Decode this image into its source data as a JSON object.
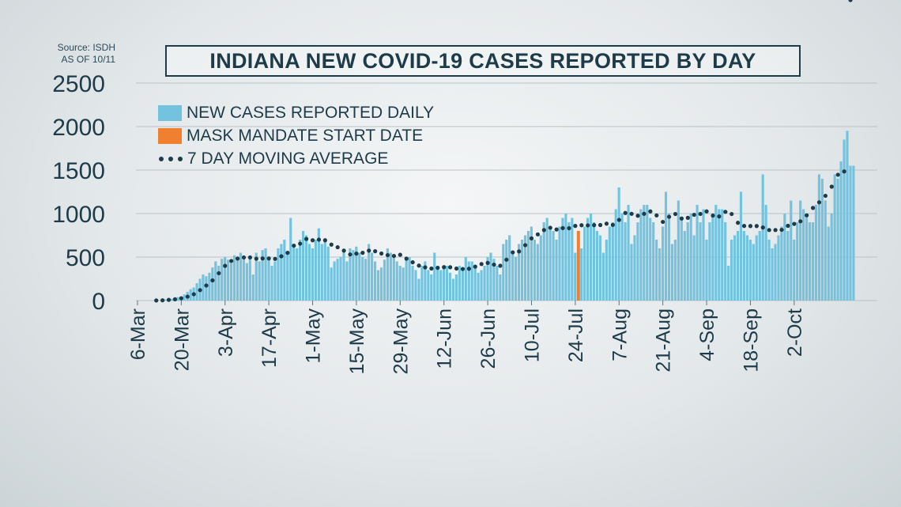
{
  "source": {
    "line1": "Source: ISDH",
    "line2": "AS OF 10/11"
  },
  "title": "INDIANA NEW COVID-19 CASES REPORTED BY DAY",
  "legend": {
    "cases": "NEW CASES REPORTED DAILY",
    "mask": "MASK MANDATE START DATE",
    "avg": "7 DAY MOVING AVERAGE"
  },
  "colors": {
    "bar": "#73c3df",
    "mask": "#f0802f",
    "avg": "#1d3b48",
    "text": "#1d3b48"
  },
  "chart_data": {
    "type": "bar",
    "start_date": "6-Mar",
    "ylim": [
      0,
      2500
    ],
    "yticks": [
      0,
      500,
      1000,
      1500,
      2000,
      2500
    ],
    "xticks": [
      "6-Mar",
      "20-Mar",
      "3-Apr",
      "17-Apr",
      "1-May",
      "15-May",
      "29-May",
      "12-Jun",
      "26-Jun",
      "10-Jul",
      "24-Jul",
      "7-Aug",
      "21-Aug",
      "4-Sep",
      "18-Sep",
      "2-Oct"
    ],
    "mask_mandate_day": 141,
    "mask_mandate_value": 800,
    "series": [
      {
        "name": "NEW CASES REPORTED DAILY",
        "values": [
          0,
          0,
          0,
          0,
          0,
          0,
          2,
          4,
          8,
          12,
          16,
          20,
          25,
          40,
          45,
          70,
          100,
          130,
          150,
          200,
          250,
          300,
          280,
          320,
          380,
          450,
          400,
          480,
          500,
          470,
          430,
          520,
          480,
          550,
          500,
          430,
          480,
          300,
          550,
          450,
          580,
          600,
          480,
          400,
          450,
          600,
          650,
          700,
          550,
          950,
          650,
          600,
          700,
          800,
          750,
          650,
          600,
          700,
          830,
          650,
          700,
          620,
          380,
          450,
          480,
          500,
          550,
          450,
          600,
          580,
          620,
          550,
          500,
          480,
          650,
          550,
          450,
          350,
          380,
          470,
          600,
          550,
          500,
          450,
          400,
          380,
          470,
          500,
          400,
          350,
          250,
          400,
          450,
          350,
          300,
          550,
          400,
          350,
          380,
          400,
          320,
          250,
          300,
          400,
          350,
          500,
          450,
          450,
          400,
          320,
          350,
          400,
          500,
          550,
          480,
          400,
          300,
          650,
          700,
          750,
          550,
          500,
          650,
          700,
          750,
          800,
          850,
          700,
          650,
          750,
          900,
          950,
          850,
          800,
          700,
          850,
          950,
          1000,
          900,
          950,
          550,
          800,
          600,
          850,
          950,
          1000,
          900,
          800,
          750,
          550,
          700,
          850,
          900,
          1050,
          1300,
          1000,
          900,
          1100,
          650,
          750,
          900,
          1050,
          1100,
          1100,
          950,
          900,
          700,
          600,
          850,
          1250,
          1000,
          650,
          700,
          1150,
          950,
          800,
          900,
          1000,
          750,
          1100,
          900,
          1050,
          700,
          900,
          1000,
          1100,
          1050,
          1050,
          900,
          400,
          700,
          750,
          800,
          1250,
          800,
          750,
          700,
          650,
          750,
          800,
          1450,
          1100,
          700,
          600,
          650,
          750,
          850,
          1000,
          800,
          1150,
          700,
          900,
          1150,
          1050,
          1000,
          900,
          900,
          1100,
          1450,
          1400,
          1150,
          850,
          1000,
          1450,
          1400,
          1600,
          1850,
          1950,
          1550,
          1550
        ]
      },
      {
        "name": "7 DAY MOVING AVERAGE",
        "values": [
          0,
          0,
          0,
          0,
          0,
          0,
          1,
          2,
          3,
          5,
          8,
          11,
          15,
          21,
          26,
          34,
          45,
          59,
          73,
          94,
          120,
          147,
          173,
          200,
          232,
          270,
          314,
          359,
          399,
          431,
          455,
          472,
          483,
          492,
          496,
          491,
          496,
          477,
          481,
          473,
          484,
          491,
          484,
          467,
          479,
          492,
          509,
          544,
          549,
          618,
          631,
          636,
          654,
          678,
          708,
          700,
          693,
          687,
          700,
          707,
          693,
          682,
          643,
          632,
          613,
          617,
          574,
          553,
          530,
          529,
          540,
          553,
          549,
          547,
          574,
          576,
          567,
          549,
          541,
          552,
          522,
          515,
          513,
          521,
          526,
          510,
          482,
          450,
          440,
          414,
          402,
          402,
          382,
          369,
          368,
          382,
          376,
          386,
          384,
          397,
          383,
          369,
          368,
          370,
          363,
          368,
          366,
          377,
          390,
          402,
          420,
          426,
          433,
          434,
          413,
          401,
          400,
          424,
          470,
          518,
          554,
          560,
          565,
          595,
          637,
          671,
          715,
          742,
          761,
          796,
          810,
          826,
          837,
          840,
          817,
          832,
          833,
          838,
          832,
          836,
          858,
          860,
          866,
          862,
          864,
          867,
          867,
          866,
          868,
          865,
          884,
          885,
          870,
          885,
          927,
          981,
          1007,
          1005,
          997,
          1017,
          975,
          961,
          997,
          1032,
          1025,
          1022,
          979,
          921,
          904,
          921,
          963,
          1003,
          995,
          963,
          943,
          940,
          951,
          984,
          986,
          996,
          996,
          1007,
          1025,
          1000,
          977,
          969,
          967,
          994,
          1020,
          1038,
          995,
          930,
          894,
          860,
          858,
          858,
          857,
          857,
          857,
          851,
          840,
          822,
          811,
          800,
          811,
          807,
          813,
          843,
          859,
          878,
          881,
          891,
          911,
          947,
          980,
          1027,
          1065,
          1104,
          1129,
          1148,
          1204,
          1243,
          1309,
          1382,
          1446,
          1479,
          1484
        ]
      }
    ]
  }
}
